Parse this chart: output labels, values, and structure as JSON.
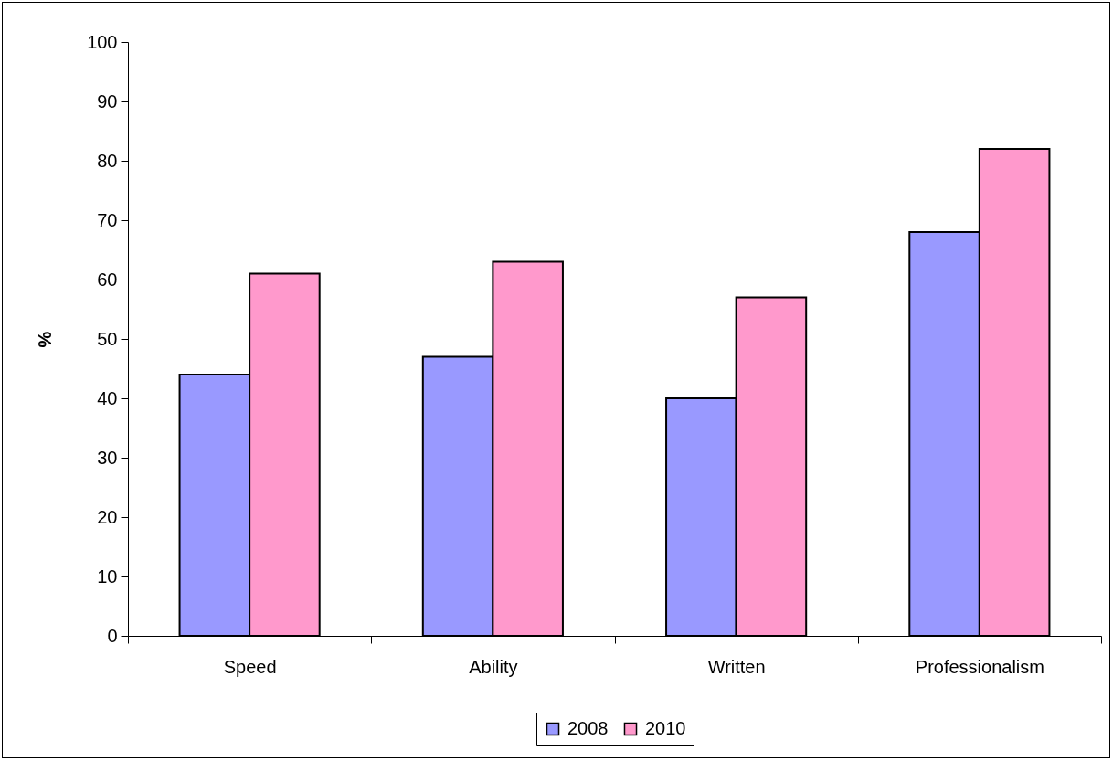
{
  "chart_data": {
    "type": "bar",
    "ylabel": "%",
    "categories": [
      "Speed",
      "Ability",
      "Written",
      "Professionalism"
    ],
    "series": [
      {
        "name": "2008",
        "color": "#9999ff",
        "values": [
          44,
          47,
          40,
          68
        ]
      },
      {
        "name": "2010",
        "color": "#ff99cc",
        "values": [
          61,
          63,
          57,
          82
        ]
      }
    ],
    "ylim": [
      0,
      100
    ],
    "yticks": [
      0,
      10,
      20,
      30,
      40,
      50,
      60,
      70,
      80,
      90,
      100
    ],
    "legend": "bottom"
  }
}
